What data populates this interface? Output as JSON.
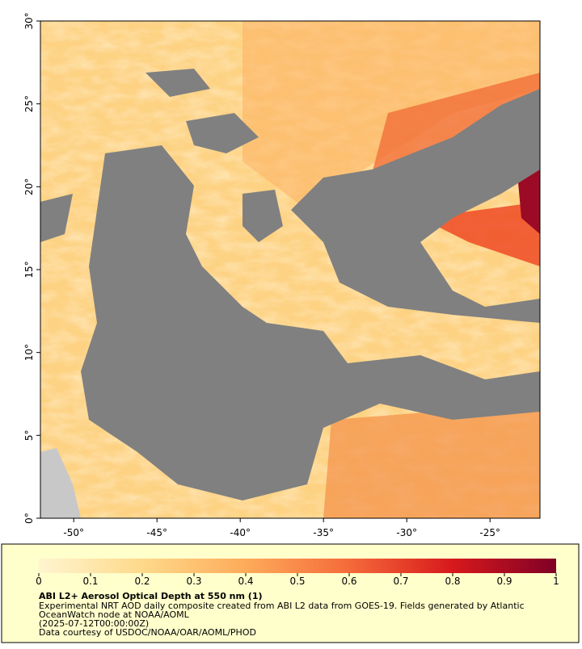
{
  "map": {
    "xlim": [
      -52,
      -22
    ],
    "ylim": [
      0,
      30
    ],
    "xticks": [
      {
        "value": -50,
        "label": "-50°"
      },
      {
        "value": -45,
        "label": "-45°"
      },
      {
        "value": -40,
        "label": "-40°"
      },
      {
        "value": -35,
        "label": "-35°"
      },
      {
        "value": -30,
        "label": "-30°"
      },
      {
        "value": -25,
        "label": "-25°"
      }
    ],
    "yticks": [
      {
        "value": 0,
        "label": "0°"
      },
      {
        "value": 5,
        "label": "5°"
      },
      {
        "value": 10,
        "label": "10°"
      },
      {
        "value": 15,
        "label": "15°"
      },
      {
        "value": 20,
        "label": "20°"
      },
      {
        "value": 25,
        "label": "25°"
      },
      {
        "value": 30,
        "label": "30°"
      }
    ]
  },
  "colorbar": {
    "range": [
      0,
      1
    ],
    "ticks": [
      0,
      0.1,
      0.2,
      0.3,
      0.4,
      0.5,
      0.6,
      0.7,
      0.8,
      0.9,
      1
    ]
  },
  "legend": {
    "title": "ABI L2+ Aerosol Optical Depth at 550 nm (1)",
    "lines": [
      "Experimental NRT AOD daily composite created from ABI L2 data from GOES-19. Fields generated by Atlantic",
      "OceanWatch node at NOAA/AOML",
      "(2025-07-12T00:00:00Z)",
      "Data courtesy of USDOC/NOAA/OAR/AOML/PHOD"
    ]
  }
}
